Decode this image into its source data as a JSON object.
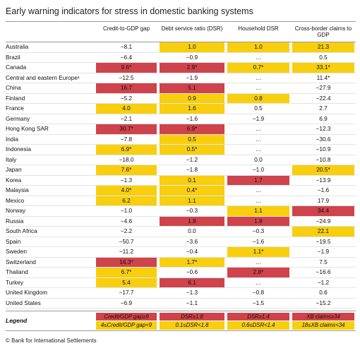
{
  "title": "Early warning indicators for stress in domestic banking systems",
  "colors": {
    "red": "#cf434c",
    "yellow": "#f7cf0e"
  },
  "table": {
    "columns": [
      "Credit-to-GDP gap",
      "Debt service ratio (DSR)",
      "Household DSR",
      "Cross-border claims to GDP"
    ],
    "rows": [
      {
        "name": "Australia",
        "cells": [
          {
            "text": "−8.1"
          },
          {
            "text": "1.0",
            "level": "yellow"
          },
          {
            "text": "1.0",
            "level": "yellow"
          },
          {
            "text": "21.3",
            "level": "yellow"
          }
        ]
      },
      {
        "name": "Brazil",
        "cells": [
          {
            "text": "−6.4"
          },
          {
            "text": "−0.9"
          },
          {
            "text": "…"
          },
          {
            "text": "0.5"
          }
        ]
      },
      {
        "name": "Canada",
        "cells": [
          {
            "text": "9.6*",
            "level": "red"
          },
          {
            "text": "2.9*",
            "level": "red"
          },
          {
            "text": "0.7*",
            "level": "yellow"
          },
          {
            "text": "33.1*",
            "level": "yellow"
          }
        ]
      },
      {
        "name": "Central and eastern Europe¹",
        "cells": [
          {
            "text": "−12.5"
          },
          {
            "text": "−1.9"
          },
          {
            "text": "…"
          },
          {
            "text": "11.4*"
          }
        ]
      },
      {
        "name": "China",
        "cells": [
          {
            "text": "16.7",
            "level": "red"
          },
          {
            "text": "5.1",
            "level": "red"
          },
          {
            "text": "…"
          },
          {
            "text": "−27.9"
          }
        ]
      },
      {
        "name": "Finland",
        "cells": [
          {
            "text": "−5.2"
          },
          {
            "text": "0.9",
            "level": "yellow"
          },
          {
            "text": "0.8",
            "level": "yellow"
          },
          {
            "text": "−22.4"
          }
        ]
      },
      {
        "name": "France",
        "cells": [
          {
            "text": "4.0",
            "level": "yellow"
          },
          {
            "text": "1.6",
            "level": "yellow"
          },
          {
            "text": "0.5"
          },
          {
            "text": "2.7"
          }
        ]
      },
      {
        "name": "Germany",
        "cells": [
          {
            "text": "−2.1"
          },
          {
            "text": "−1.6"
          },
          {
            "text": "−1.9"
          },
          {
            "text": "6.9"
          }
        ]
      },
      {
        "name": "Hong Kong SAR",
        "cells": [
          {
            "text": "30.7*",
            "level": "red"
          },
          {
            "text": "6.9*",
            "level": "red"
          },
          {
            "text": "…"
          },
          {
            "text": "−12.3"
          }
        ]
      },
      {
        "name": "India",
        "cells": [
          {
            "text": "−7.8"
          },
          {
            "text": "0.5",
            "level": "yellow"
          },
          {
            "text": "…"
          },
          {
            "text": "−30.6"
          }
        ]
      },
      {
        "name": "Indonesia",
        "cells": [
          {
            "text": "6.9*",
            "level": "yellow"
          },
          {
            "text": "0.5*",
            "level": "yellow"
          },
          {
            "text": "…"
          },
          {
            "text": "−10.9"
          }
        ]
      },
      {
        "name": "Italy",
        "cells": [
          {
            "text": "−18.0"
          },
          {
            "text": "−1.2"
          },
          {
            "text": "0.0"
          },
          {
            "text": "−10.8"
          }
        ]
      },
      {
        "name": "Japan",
        "cells": [
          {
            "text": "7.6*",
            "level": "yellow"
          },
          {
            "text": "−1.8"
          },
          {
            "text": "−1.0"
          },
          {
            "text": "20.5*",
            "level": "yellow"
          }
        ]
      },
      {
        "name": "Korea",
        "cells": [
          {
            "text": "−1.3"
          },
          {
            "text": "0.1",
            "level": "yellow"
          },
          {
            "text": "1.7",
            "level": "red"
          },
          {
            "text": "−13.9"
          }
        ]
      },
      {
        "name": "Malaysia",
        "cells": [
          {
            "text": "4.0*",
            "level": "yellow"
          },
          {
            "text": "0.4*",
            "level": "yellow"
          },
          {
            "text": "…"
          },
          {
            "text": "−1.6"
          }
        ]
      },
      {
        "name": "Mexico",
        "cells": [
          {
            "text": "6.2",
            "level": "yellow"
          },
          {
            "text": "1.1",
            "level": "yellow"
          },
          {
            "text": "…"
          },
          {
            "text": "17.9"
          }
        ]
      },
      {
        "name": "Norway",
        "cells": [
          {
            "text": "−1.0"
          },
          {
            "text": "−0.3"
          },
          {
            "text": "1.1",
            "level": "yellow"
          },
          {
            "text": "34.4",
            "level": "red"
          }
        ]
      },
      {
        "name": "Russia",
        "cells": [
          {
            "text": "−4.6"
          },
          {
            "text": "1.8",
            "level": "red"
          },
          {
            "text": "1.8",
            "level": "red"
          },
          {
            "text": "−24.9"
          }
        ]
      },
      {
        "name": "South Africa",
        "cells": [
          {
            "text": "−2.2"
          },
          {
            "text": "0.0"
          },
          {
            "text": "−0.3"
          },
          {
            "text": "22.1",
            "level": "yellow"
          }
        ]
      },
      {
        "name": "Spain",
        "cells": [
          {
            "text": "−50.7"
          },
          {
            "text": "−3.6"
          },
          {
            "text": "−1.6"
          },
          {
            "text": "−19.5"
          }
        ]
      },
      {
        "name": "Sweden",
        "cells": [
          {
            "text": "−11.2"
          },
          {
            "text": "−0.4"
          },
          {
            "text": "1.1*",
            "level": "yellow"
          },
          {
            "text": "−1.9"
          }
        ]
      },
      {
        "name": "Switzerland",
        "cells": [
          {
            "text": "16.3*",
            "level": "red"
          },
          {
            "text": "1.7*",
            "level": "yellow"
          },
          {
            "text": "…"
          },
          {
            "text": "7.5"
          }
        ]
      },
      {
        "name": "Thailand",
        "cells": [
          {
            "text": "6.7*",
            "level": "yellow"
          },
          {
            "text": "−0.6"
          },
          {
            "text": "2.8*",
            "level": "red"
          },
          {
            "text": "−16.6"
          }
        ]
      },
      {
        "name": "Turkey",
        "cells": [
          {
            "text": "5.4",
            "level": "yellow"
          },
          {
            "text": "6.1",
            "level": "red"
          },
          {
            "text": "…"
          },
          {
            "text": "−1.2"
          }
        ]
      },
      {
        "name": "United Kingdom",
        "cells": [
          {
            "text": "−17.7"
          },
          {
            "text": "−1.3"
          },
          {
            "text": "−0.8"
          },
          {
            "text": "0.6"
          }
        ]
      },
      {
        "name": "United States",
        "cells": [
          {
            "text": "−6.9"
          },
          {
            "text": "−1.1"
          },
          {
            "text": "−1.5"
          },
          {
            "text": "−15.2"
          }
        ]
      }
    ]
  },
  "legend": {
    "title": "Legend",
    "rows": [
      {
        "level": "red",
        "cells": [
          "Credit/GDP gap≥9",
          "DSR≥1.8",
          "DSR≥1.4",
          "XB claims≥34"
        ]
      },
      {
        "level": "yellow",
        "cells": [
          "4≤Credit/GDP gap<9",
          "0.1≤DSR<1.8",
          "0.6≤DSR<1.4",
          "18≤XB claims<34"
        ]
      }
    ]
  },
  "footer": "© Bank for International Settlements"
}
